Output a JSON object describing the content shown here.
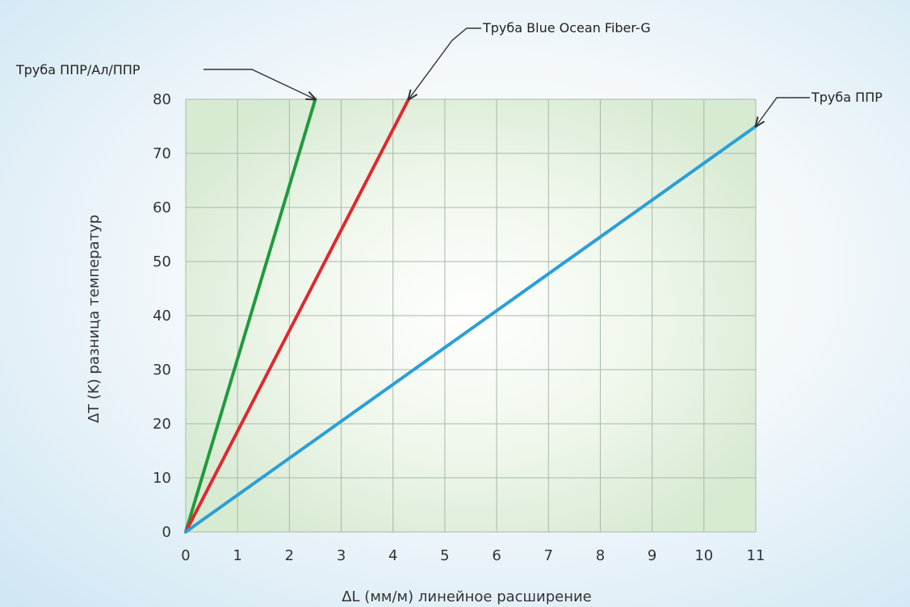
{
  "chart_data": {
    "type": "line",
    "xlabel": "ΔL (мм/м) линейное расширение",
    "ylabel": "ΔT (K) разница температур",
    "xlim": [
      0,
      11
    ],
    "ylim": [
      0,
      80
    ],
    "x_ticks": [
      0,
      1,
      2,
      3,
      4,
      5,
      6,
      7,
      8,
      9,
      10,
      11
    ],
    "y_ticks": [
      0,
      10,
      20,
      30,
      40,
      50,
      60,
      70,
      80
    ],
    "grid": true,
    "colors": {
      "plot_bg": "#d7ead2",
      "grid": "#a8b8a8"
    },
    "series": [
      {
        "name": "Труба ППР/Ал/ППР",
        "color": "#1f9a3f",
        "x": [
          0,
          2.5
        ],
        "y": [
          0,
          80
        ]
      },
      {
        "name": "Труба Blue Ocean Fiber-G",
        "color": "#e0282e",
        "x": [
          0,
          4.3
        ],
        "y": [
          0,
          80
        ]
      },
      {
        "name": "Труба ППР",
        "color": "#2a9fd8",
        "x": [
          0,
          11
        ],
        "y": [
          0,
          75
        ]
      }
    ]
  }
}
